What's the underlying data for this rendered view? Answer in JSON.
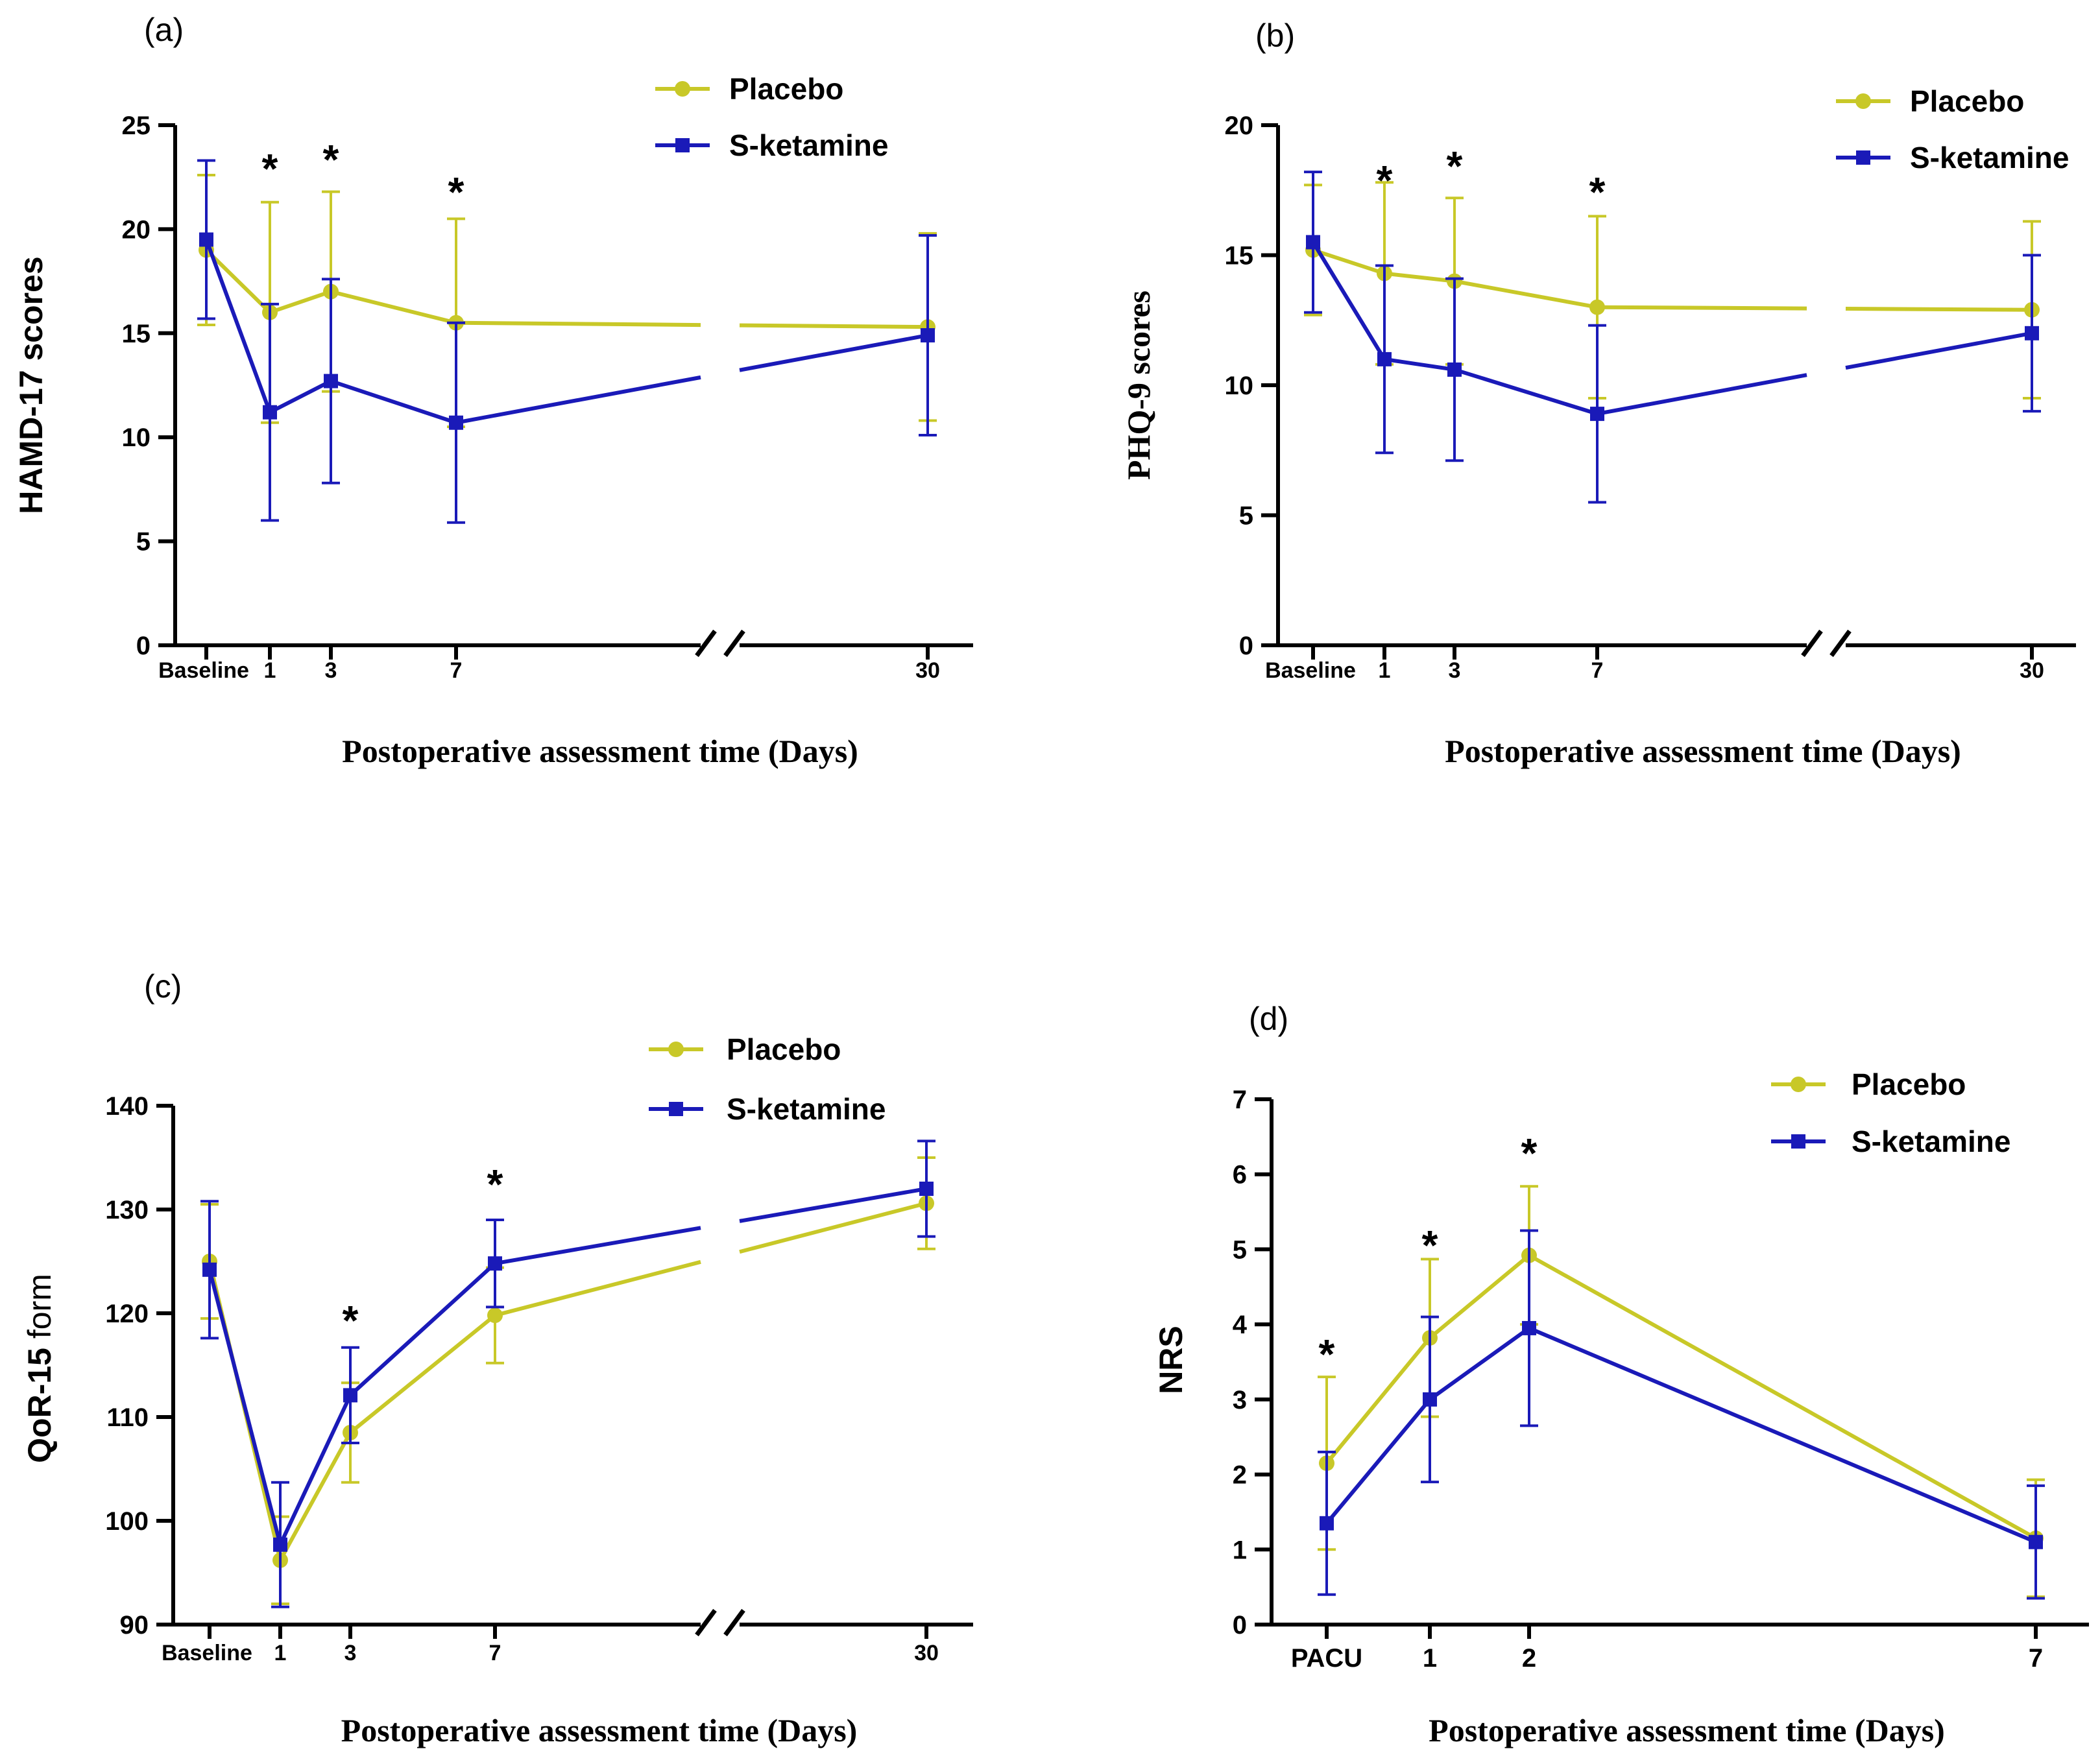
{
  "colors": {
    "placebo": "#c8c828",
    "sketamine": "#1a1ab8",
    "axis": "#000000"
  },
  "chart_data": [
    {
      "id": "a",
      "panel_label": "(a)",
      "type": "line",
      "ylabel": "HAMD-17 scores",
      "xlabel": "Postoperative assessment time (Days)",
      "ylim": [
        0,
        25
      ],
      "yticks": [
        "0",
        "5",
        "10",
        "15",
        "20",
        "25"
      ],
      "categories": [
        "Baseline",
        "1",
        "3",
        "7",
        "30"
      ],
      "axis_break": true,
      "significant": [
        "1",
        "3",
        "7"
      ],
      "legend": [
        "Placebo",
        "S-ketamine"
      ],
      "series": [
        {
          "name": "Placebo",
          "values": [
            19.0,
            16.0,
            17.0,
            15.5,
            15.3
          ],
          "err": [
            3.6,
            5.3,
            4.8,
            5.0,
            4.5
          ]
        },
        {
          "name": "S-ketamine",
          "values": [
            19.5,
            11.2,
            12.7,
            10.7,
            14.9
          ],
          "err": [
            3.8,
            5.2,
            4.9,
            4.8,
            4.8
          ]
        }
      ]
    },
    {
      "id": "b",
      "panel_label": "(b)",
      "type": "line",
      "ylabel": "PHQ-9 scores",
      "xlabel": "Postoperative assessment time (Days)",
      "ylim": [
        0,
        20
      ],
      "yticks": [
        "0",
        "5",
        "10",
        "15",
        "20"
      ],
      "categories": [
        "Baseline",
        "1",
        "3",
        "7",
        "30"
      ],
      "axis_break": true,
      "significant": [
        "1",
        "3",
        "7"
      ],
      "legend": [
        "Placebo",
        "S-ketamine"
      ],
      "series": [
        {
          "name": "Placebo",
          "values": [
            15.2,
            14.3,
            14.0,
            13.0,
            12.9
          ],
          "err": [
            2.5,
            3.5,
            3.2,
            3.5,
            3.4
          ]
        },
        {
          "name": "S-ketamine",
          "values": [
            15.5,
            11.0,
            10.6,
            8.9,
            12.0
          ],
          "err": [
            2.7,
            3.6,
            3.5,
            3.4,
            3.0
          ]
        }
      ]
    },
    {
      "id": "c",
      "panel_label": "(c)",
      "type": "line",
      "ylabel_bold": "QoR-15",
      "ylabel_rest": " form",
      "xlabel": "Postoperative assessment time (Days)",
      "ylim": [
        90,
        140
      ],
      "yticks": [
        "90",
        "100",
        "110",
        "120",
        "130",
        "140"
      ],
      "categories": [
        "Baseline",
        "1",
        "3",
        "7",
        "30"
      ],
      "axis_break": true,
      "significant": [
        "3",
        "7"
      ],
      "legend": [
        "Placebo",
        "S-ketamine"
      ],
      "series": [
        {
          "name": "Placebo",
          "values": [
            125.0,
            96.2,
            108.5,
            119.8,
            130.6
          ],
          "err": [
            5.5,
            4.2,
            4.8,
            4.6,
            4.4
          ]
        },
        {
          "name": "S-ketamine",
          "values": [
            124.2,
            97.7,
            112.1,
            124.8,
            132.0
          ],
          "err": [
            6.6,
            6.0,
            4.6,
            4.2,
            4.6
          ]
        }
      ]
    },
    {
      "id": "d",
      "panel_label": "(d)",
      "type": "line",
      "ylabel": "NRS",
      "xlabel": "Postoperative assessment time (Days)",
      "ylim": [
        0,
        7
      ],
      "yticks": [
        "0",
        "1",
        "2",
        "3",
        "4",
        "5",
        "6",
        "7"
      ],
      "categories": [
        "PACU",
        "1",
        "2",
        "7"
      ],
      "axis_break": false,
      "significant": [
        "PACU",
        "1",
        "2"
      ],
      "legend": [
        "Placebo",
        "S-ketamine"
      ],
      "series": [
        {
          "name": "Placebo",
          "values": [
            2.15,
            3.82,
            4.92,
            1.15
          ],
          "err": [
            1.15,
            1.05,
            0.92,
            0.78
          ]
        },
        {
          "name": "S-ketamine",
          "values": [
            1.35,
            3.0,
            3.95,
            1.1
          ],
          "err": [
            0.95,
            1.1,
            1.3,
            0.75
          ]
        }
      ]
    }
  ],
  "significance_marker": "*"
}
